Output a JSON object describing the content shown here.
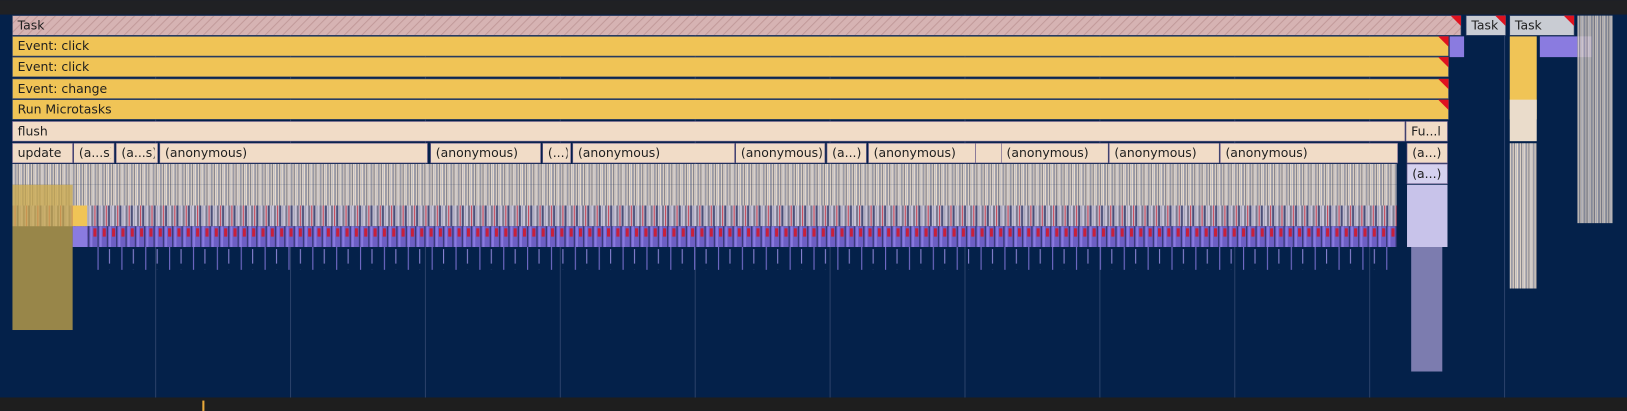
{
  "flame": {
    "rows": [
      [
        "Task",
        "Task",
        "Task"
      ],
      [
        "Event: click"
      ],
      [
        "Event: click"
      ],
      [
        "Event: change"
      ],
      [
        "Run Microtasks"
      ],
      [
        "flush",
        "Fu...l"
      ],
      [
        "update",
        "(a...s)",
        "(a...s)",
        "(anonymous)",
        "(anonymous)",
        "(...)",
        "(anonymous)",
        "(anonymous)",
        "(a...)",
        "(anonymous)",
        "(anonymous)",
        "(anonymous)",
        "(anonymous)",
        "(a...)"
      ],
      [
        "(a...)"
      ]
    ]
  }
}
